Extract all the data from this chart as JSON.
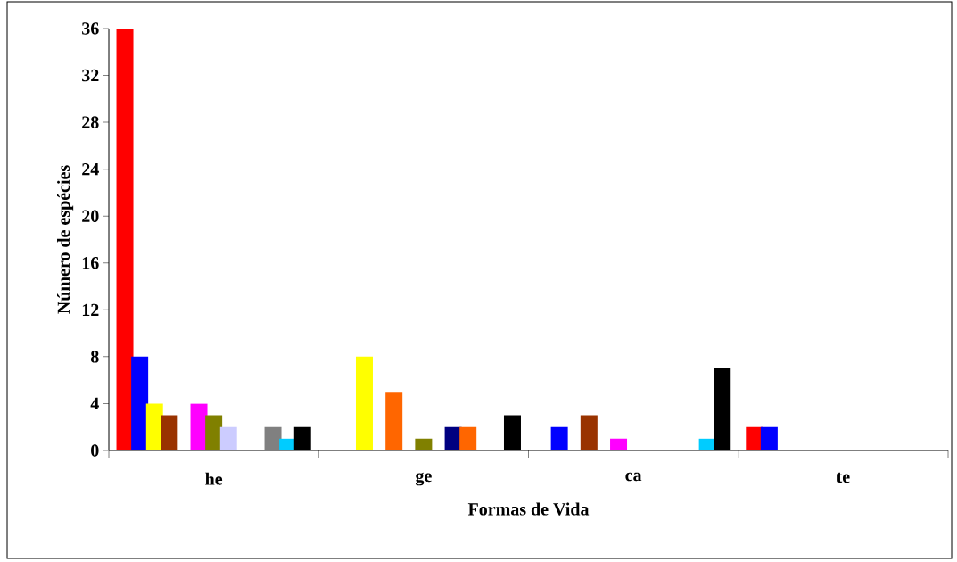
{
  "chart_data": {
    "type": "bar",
    "xlabel": "Formas de Vida",
    "ylabel": "Número de espécies",
    "categories": [
      "he",
      "ge",
      "ca",
      "te"
    ],
    "ylim": [
      0,
      36
    ],
    "yticks": [
      0,
      4,
      8,
      12,
      16,
      20,
      24,
      28,
      32,
      36
    ],
    "series": [
      {
        "color": "#ff0000",
        "values": [
          36,
          0,
          0,
          2
        ]
      },
      {
        "color": "#0000ff",
        "values": [
          8,
          0,
          2,
          2
        ]
      },
      {
        "color": "#ffff00",
        "values": [
          4,
          8,
          0,
          0
        ]
      },
      {
        "color": "#993300",
        "values": [
          3,
          0,
          3,
          0
        ]
      },
      {
        "color": "#ff6600",
        "values": [
          0,
          5,
          0,
          0
        ]
      },
      {
        "color": "#ff00ff",
        "values": [
          4,
          0,
          1,
          0
        ]
      },
      {
        "color": "#808000",
        "values": [
          3,
          1,
          0,
          0
        ]
      },
      {
        "color": "#ccccff",
        "values": [
          2,
          0,
          0,
          0
        ]
      },
      {
        "color": "#000080",
        "values": [
          0,
          2,
          0,
          0
        ]
      },
      {
        "color": "#ff6600",
        "values": [
          0,
          2,
          0,
          0
        ]
      },
      {
        "color": "#808080",
        "values": [
          2,
          0,
          0,
          0
        ]
      },
      {
        "color": "#00ccff",
        "values": [
          1,
          0,
          1,
          0
        ]
      },
      {
        "color": "#000000",
        "values": [
          2,
          3,
          7,
          0
        ]
      }
    ]
  }
}
